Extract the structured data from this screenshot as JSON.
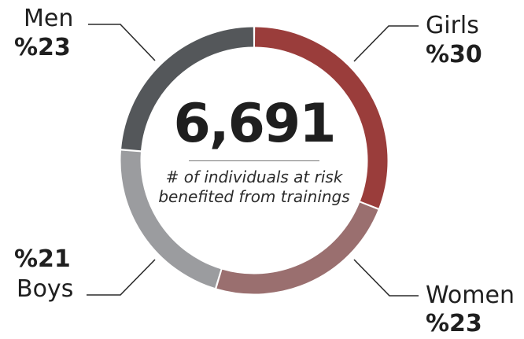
{
  "colors": {
    "men": "#54575a",
    "girls": "#9a3d3b",
    "women": "#9a6f6f",
    "boys": "#9b9c9f",
    "leader": "#2a2a2a"
  },
  "center": {
    "total": "6,691",
    "caption": "# of individuals at risk benefited from trainings"
  },
  "chart_data": {
    "type": "pie",
    "variant": "donut",
    "total": 6691,
    "total_label": "6,691",
    "caption": "# of individuals at risk benefited from trainings",
    "categories": [
      "Girls",
      "Women",
      "Boys",
      "Men"
    ],
    "values": [
      30,
      23,
      21,
      23
    ],
    "value_labels": [
      "%30",
      "%23",
      "%21",
      "%23"
    ],
    "unit": "%"
  }
}
